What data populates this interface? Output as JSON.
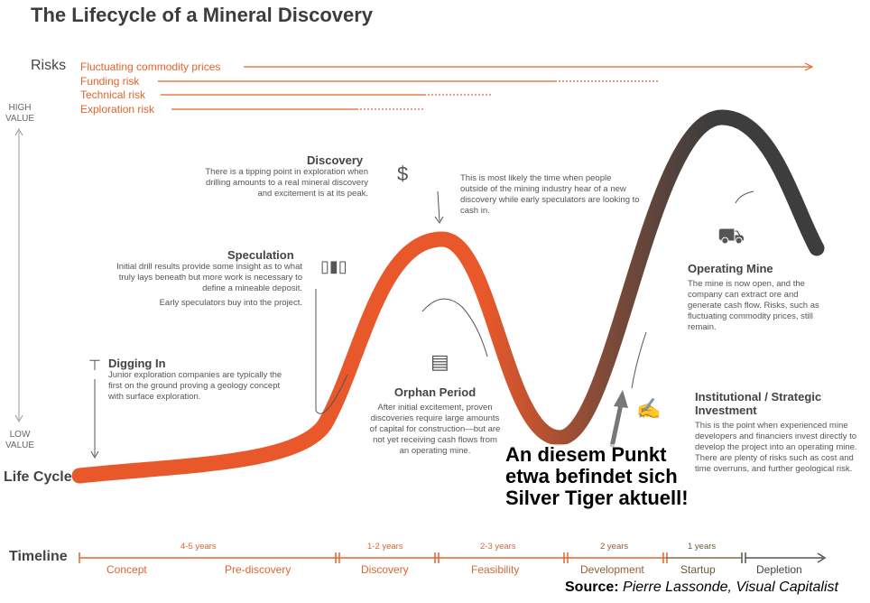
{
  "title": "The Lifecycle of a Mineral Discovery",
  "risks": {
    "heading": "Risks",
    "items": [
      "Fluctuating commodity prices",
      "Funding risk",
      "Technical risk",
      "Exploration risk"
    ]
  },
  "axis": {
    "high": "HIGH VALUE",
    "low": "LOW VALUE",
    "life_cycle": "Life Cycle"
  },
  "stages": [
    {
      "title": "Digging In",
      "text": "Junior exploration companies are typically the first on the ground proving a geology concept with surface exploration."
    },
    {
      "title": "Speculation",
      "text": "Initial drill results provide some insight as to what truly lays beneath but more work is necessary to define a mineable deposit.",
      "text2": "Early speculators buy into the project."
    },
    {
      "title": "Discovery",
      "text": "There is a tipping point in exploration when drilling amounts to a real mineral discovery and excitement is at its peak.",
      "text2": "This is most likely the time when people outside of the mining industry hear of a new discovery while early speculators are looking to cash in."
    },
    {
      "title": "Orphan Period",
      "text": "After initial excitement, proven discoveries require large amounts of capital for construction—but are not yet receiving cash flows from an operating mine."
    },
    {
      "title": "Operating Mine",
      "text": "The mine is now open, and the company can extract ore and generate cash flow. Risks, such as fluctuating commodity prices, still remain."
    },
    {
      "title": "Institutional / Strategic Investment",
      "text": "This is the point when experienced mine developers and financiers invest directly to develop the project into an operating mine. There are plenty of risks such as cost and time overruns, and further geological risk."
    }
  ],
  "annotation": "An diesem Punkt etwa befindet sich Silver Tiger aktuell!",
  "timeline": {
    "label": "Timeline",
    "durations": [
      "4-5 years",
      "1-2 years",
      "2-3 years",
      "2 years",
      "1 years"
    ],
    "phases": [
      "Concept",
      "Pre-discovery",
      "Discovery",
      "Feasibility",
      "Development",
      "Startup",
      "Depletion"
    ]
  },
  "source": {
    "label": "Source:",
    "text": "Pierre Lassonde, Visual Capitalist"
  },
  "colors": {
    "orange": "#e8582a",
    "brown": "#7a4a3a",
    "dark": "#3d3d3d"
  }
}
